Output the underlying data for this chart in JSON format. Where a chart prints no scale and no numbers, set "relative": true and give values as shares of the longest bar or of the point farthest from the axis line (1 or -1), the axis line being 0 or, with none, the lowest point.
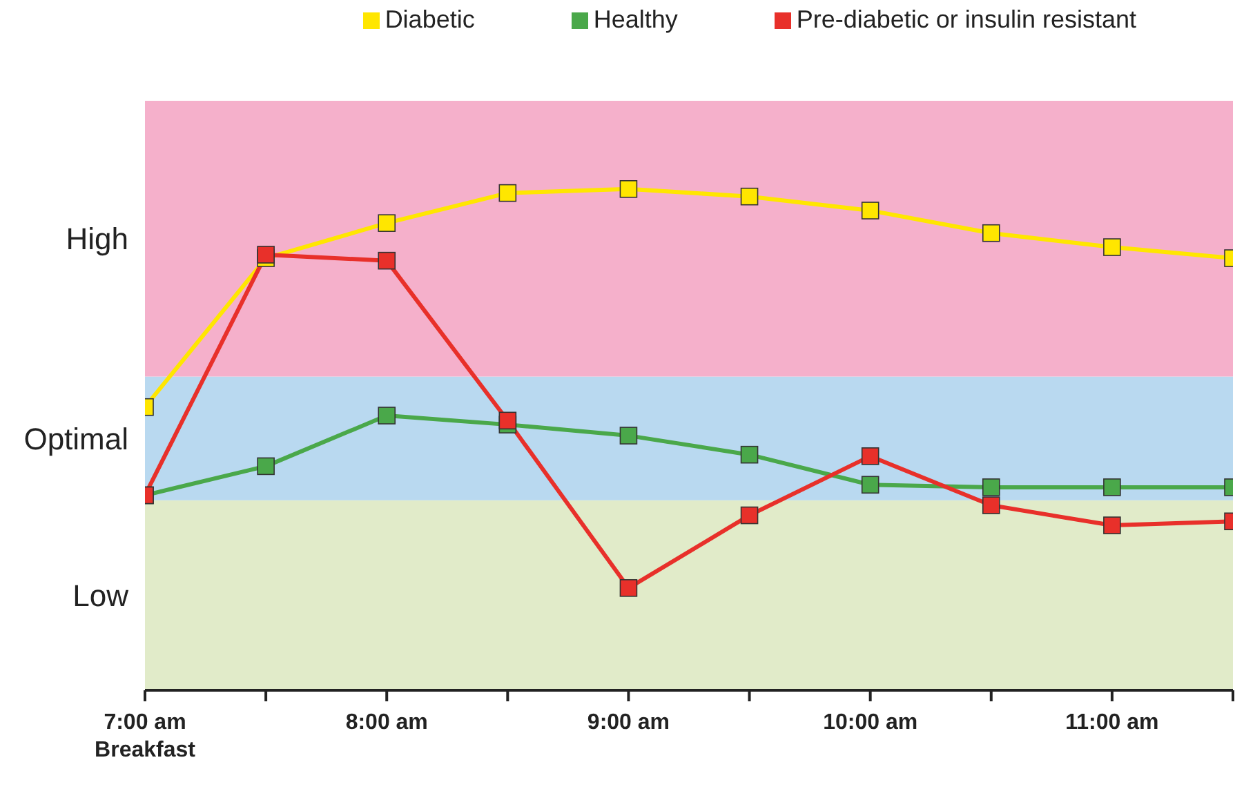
{
  "chart_data": {
    "type": "line",
    "relative": true,
    "categories": [
      "7:00 am\nBreakfast",
      null,
      "8:00 am",
      null,
      "9:00 am",
      null,
      "10:00 am",
      null,
      "11:00 am",
      null
    ],
    "series": [
      {
        "name": "Diabetic",
        "color": "#ffe600",
        "values": [
          0.565,
          0.862,
          0.932,
          0.992,
          1,
          0.985,
          0.957,
          0.912,
          0.884,
          0.862
        ]
      },
      {
        "name": "Healthy",
        "color": "#4aa84a",
        "values": [
          0.389,
          0.447,
          0.548,
          0.53,
          0.508,
          0.47,
          0.41,
          0.405,
          0.405,
          0.405
        ]
      },
      {
        "name": "Pre-diabetic or insulin resistant",
        "color": "#e8302a",
        "values": [
          0.389,
          0.869,
          0.857,
          0.538,
          0.204,
          0.349,
          0.467,
          0.369,
          0.329,
          0.337
        ]
      }
    ],
    "bands": [
      {
        "axis": "y",
        "from": 0,
        "to": 0.379,
        "label": "Low",
        "color": "#e1ebc9"
      },
      {
        "axis": "y",
        "from": 0.379,
        "to": 0.626,
        "label": "Optimal",
        "color": "#b9d9f0"
      },
      {
        "axis": "y",
        "from": 0.626,
        "to": 1.176,
        "label": "High",
        "color": "#f5b0cb"
      }
    ],
    "marker": "square",
    "legend": "top"
  }
}
